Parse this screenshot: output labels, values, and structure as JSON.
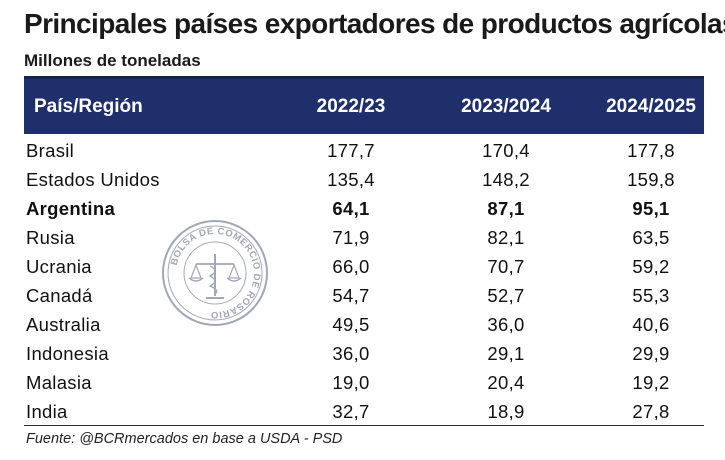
{
  "title": "Principales países exportadores de productos agrícolas",
  "subtitle": "Millones de toneladas",
  "watermark_text": "BOLSA DE COMERCIO DE ROSARIO",
  "colors": {
    "header_bg": "#1f2f6b",
    "header_text": "#ffffff"
  },
  "source": "Fuente: @BCRmercados en base a USDA - PSD",
  "chart_data": {
    "type": "table",
    "title": "Principales países exportadores de productos agrícolas",
    "subtitle": "Millones de toneladas",
    "columns": [
      "País/Región",
      "2022/23",
      "2023/2024",
      "2024/2025"
    ],
    "rows": [
      {
        "country": "Brasil",
        "values": [
          "177,7",
          "170,4",
          "177,8"
        ],
        "bold": false
      },
      {
        "country": "Estados Unidos",
        "values": [
          "135,4",
          "148,2",
          "159,8"
        ],
        "bold": false
      },
      {
        "country": "Argentina",
        "values": [
          "64,1",
          "87,1",
          "95,1"
        ],
        "bold": true
      },
      {
        "country": "Rusia",
        "values": [
          "71,9",
          "82,1",
          "63,5"
        ],
        "bold": false
      },
      {
        "country": "Ucrania",
        "values": [
          "66,0",
          "70,7",
          "59,2"
        ],
        "bold": false
      },
      {
        "country": "Canadá",
        "values": [
          "54,7",
          "52,7",
          "55,3"
        ],
        "bold": false
      },
      {
        "country": "Australia",
        "values": [
          "49,5",
          "36,0",
          "40,6"
        ],
        "bold": false
      },
      {
        "country": "Indonesia",
        "values": [
          "36,0",
          "29,1",
          "29,9"
        ],
        "bold": false
      },
      {
        "country": "Malasia",
        "values": [
          "19,0",
          "20,4",
          "19,2"
        ],
        "bold": false
      },
      {
        "country": "India",
        "values": [
          "32,7",
          "18,9",
          "27,8"
        ],
        "bold": false
      }
    ]
  }
}
